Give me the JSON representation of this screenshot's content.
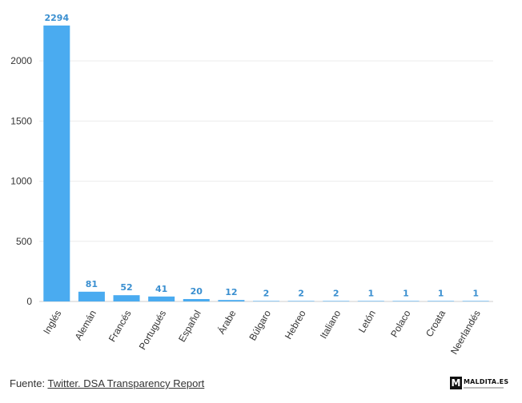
{
  "chart_data": {
    "type": "bar",
    "categories": [
      "Inglés",
      "Alemán",
      "Francés",
      "Portugués",
      "Español",
      "Árabe",
      "Búlgaro",
      "Hebreo",
      "Italiano",
      "Letón",
      "Polaco",
      "Croata",
      "Neerlandés"
    ],
    "values": [
      2294,
      81,
      52,
      41,
      20,
      12,
      2,
      2,
      2,
      1,
      1,
      1,
      1
    ],
    "ylim": [
      0,
      2300
    ],
    "yticks": [
      0,
      500,
      1000,
      1500,
      2000
    ],
    "grid": true,
    "bar_color": "#4aabf0",
    "label_color": "#3a8fd0"
  },
  "footer": {
    "prefix": "Fuente: ",
    "link_text": "Twitter. DSA Transparency Report"
  },
  "logo": {
    "mark": "M",
    "name": "MALDITA.ES"
  }
}
